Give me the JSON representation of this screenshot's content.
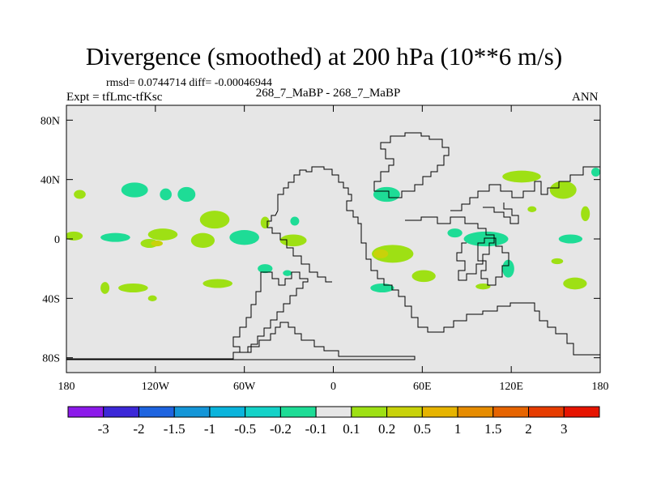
{
  "header": {
    "title": "Divergence (smoothed) at 200 hPa (10**6 m/s)",
    "stats": "rmsd= 0.0744714 diff= -0.00046944",
    "experiment": "Expt = tfLmc-tfKsc",
    "case": "268_7_MaBP - 268_7_MaBP",
    "season": "ANN"
  },
  "chart_data": {
    "type": "heatmap",
    "title": "Divergence (smoothed) at 200 hPa (10**6 m/s)",
    "xlabel": "",
    "ylabel": "",
    "xlim": [
      -180,
      180
    ],
    "ylim": [
      -90,
      90
    ],
    "x_ticks": [
      {
        "value": -180,
        "label": "180"
      },
      {
        "value": -120,
        "label": "120W"
      },
      {
        "value": -60,
        "label": "60W"
      },
      {
        "value": 0,
        "label": "0"
      },
      {
        "value": 60,
        "label": "60E"
      },
      {
        "value": 120,
        "label": "120E"
      },
      {
        "value": 180,
        "label": "180"
      }
    ],
    "y_ticks": [
      {
        "value": 80,
        "label": "80N"
      },
      {
        "value": 40,
        "label": "40N"
      },
      {
        "value": 0,
        "label": "0"
      },
      {
        "value": -40,
        "label": "40S"
      },
      {
        "value": -80,
        "label": "80S"
      }
    ],
    "background_color": "#e6e6e6",
    "colorbar": {
      "colors": [
        "#8c1aea",
        "#3c28d8",
        "#1e64e0",
        "#1496d8",
        "#0ab4dc",
        "#14d2c8",
        "#1edc96",
        "#e6e6e6",
        "#9ee014",
        "#c8d20a",
        "#e6b400",
        "#e68c00",
        "#e66400",
        "#e63c00",
        "#e61400"
      ],
      "labels": [
        "-3",
        "-2",
        "-1.5",
        "-1",
        "-0.5",
        "-0.2",
        "-0.1",
        "0.1",
        "0.2",
        "0.5",
        "1",
        "1.5",
        "2",
        "3"
      ]
    },
    "features": [
      {
        "category": "0.1 to 0.2",
        "color": "#9ee014",
        "lon": -171,
        "lat": 30,
        "rlon": 4,
        "rlat": 3
      },
      {
        "category": "0.1 to 0.2",
        "color": "#9ee014",
        "lon": -175,
        "lat": 2,
        "rlon": 6,
        "rlat": 3
      },
      {
        "category": "-0.2 to -0.1",
        "color": "#1edc96",
        "lon": -147,
        "lat": 1,
        "rlon": 10,
        "rlat": 3
      },
      {
        "category": "-0.2 to -0.1",
        "color": "#1edc96",
        "lon": -134,
        "lat": 33,
        "rlon": 9,
        "rlat": 5
      },
      {
        "category": "0.1 to 0.2",
        "color": "#9ee014",
        "lon": -115,
        "lat": 3,
        "rlon": 10,
        "rlat": 4
      },
      {
        "category": "0.1 to 0.2",
        "color": "#9ee014",
        "lon": -124,
        "lat": -3,
        "rlon": 6,
        "rlat": 3
      },
      {
        "category": "0.2 to 0.5",
        "color": "#c8d20a",
        "lon": -119,
        "lat": -3,
        "rlon": 4,
        "rlat": 2
      },
      {
        "category": "0.1 to 0.2",
        "color": "#9ee014",
        "lon": -154,
        "lat": -33,
        "rlon": 3,
        "rlat": 4
      },
      {
        "category": "0.1 to 0.2",
        "color": "#9ee014",
        "lon": -135,
        "lat": -33,
        "rlon": 10,
        "rlat": 3
      },
      {
        "category": "0.1 to 0.2",
        "color": "#9ee014",
        "lon": -122,
        "lat": -40,
        "rlon": 3,
        "rlat": 2
      },
      {
        "category": "-0.2 to -0.1",
        "color": "#1edc96",
        "lon": -99,
        "lat": 30,
        "rlon": 6,
        "rlat": 5
      },
      {
        "category": "-0.2 to -0.1",
        "color": "#1edc96",
        "lon": -113,
        "lat": 30,
        "rlon": 4,
        "rlat": 4
      },
      {
        "category": "0.1 to 0.2",
        "color": "#9ee014",
        "lon": -80,
        "lat": 13,
        "rlon": 10,
        "rlat": 6
      },
      {
        "category": "0.1 to 0.2",
        "color": "#9ee014",
        "lon": -88,
        "lat": -1,
        "rlon": 8,
        "rlat": 5
      },
      {
        "category": "-0.2 to -0.1",
        "color": "#1edc96",
        "lon": -60,
        "lat": 1,
        "rlon": 10,
        "rlat": 5
      },
      {
        "category": "0.1 to 0.2",
        "color": "#9ee014",
        "lon": -46,
        "lat": 11,
        "rlon": 3,
        "rlat": 4
      },
      {
        "category": "-0.2 to -0.1",
        "color": "#1edc96",
        "lon": -26,
        "lat": 12,
        "rlon": 3,
        "rlat": 3
      },
      {
        "category": "0.1 to 0.2",
        "color": "#9ee014",
        "lon": -27,
        "lat": -1,
        "rlon": 9,
        "rlat": 4
      },
      {
        "category": "-0.2 to -0.1",
        "color": "#1edc96",
        "lon": -46,
        "lat": -20,
        "rlon": 5,
        "rlat": 3
      },
      {
        "category": "0.1 to 0.2",
        "color": "#9ee014",
        "lon": -78,
        "lat": -30,
        "rlon": 10,
        "rlat": 3
      },
      {
        "category": "-0.2 to -0.1",
        "color": "#1edc96",
        "lon": -31,
        "lat": -23,
        "rlon": 3,
        "rlat": 2
      },
      {
        "category": "-0.2 to -0.1",
        "color": "#1edc96",
        "lon": 36,
        "lat": 30,
        "rlon": 9,
        "rlat": 5
      },
      {
        "category": "0.1 to 0.2",
        "color": "#9ee014",
        "lon": 40,
        "lat": -10,
        "rlon": 14,
        "rlat": 6
      },
      {
        "category": "0.2 to 0.5",
        "color": "#c8d20a",
        "lon": 32,
        "lat": -10,
        "rlon": 5,
        "rlat": 3
      },
      {
        "category": "-0.2 to -0.1",
        "color": "#1edc96",
        "lon": 33,
        "lat": -33,
        "rlon": 8,
        "rlat": 3
      },
      {
        "category": "0.1 to 0.2",
        "color": "#9ee014",
        "lon": 61,
        "lat": -25,
        "rlon": 8,
        "rlat": 4
      },
      {
        "category": "-0.2 to -0.1",
        "color": "#1edc96",
        "lon": 82,
        "lat": 4,
        "rlon": 5,
        "rlat": 3
      },
      {
        "category": "-0.2 to -0.1",
        "color": "#1edc96",
        "lon": 103,
        "lat": 0,
        "rlon": 15,
        "rlat": 5
      },
      {
        "category": "-0.2 to -0.1",
        "color": "#1edc96",
        "lon": 118,
        "lat": -20,
        "rlon": 4,
        "rlat": 6
      },
      {
        "category": "0.1 to 0.2",
        "color": "#9ee014",
        "lon": 101,
        "lat": -32,
        "rlon": 5,
        "rlat": 2
      },
      {
        "category": "0.1 to 0.2",
        "color": "#9ee014",
        "lon": 127,
        "lat": 42,
        "rlon": 13,
        "rlat": 4
      },
      {
        "category": "0.1 to 0.2",
        "color": "#9ee014",
        "lon": 134,
        "lat": 20,
        "rlon": 3,
        "rlat": 2
      },
      {
        "category": "0.1 to 0.2",
        "color": "#9ee014",
        "lon": 155,
        "lat": 33,
        "rlon": 9,
        "rlat": 6
      },
      {
        "category": "0.1 to 0.2",
        "color": "#9ee014",
        "lon": 170,
        "lat": 17,
        "rlon": 3,
        "rlat": 5
      },
      {
        "category": "-0.2 to -0.1",
        "color": "#1edc96",
        "lon": 177,
        "lat": 45,
        "rlon": 3,
        "rlat": 3
      },
      {
        "category": "-0.2 to -0.1",
        "color": "#1edc96",
        "lon": 160,
        "lat": 0,
        "rlon": 8,
        "rlat": 3
      },
      {
        "category": "0.1 to 0.2",
        "color": "#9ee014",
        "lon": 151,
        "lat": -15,
        "rlon": 4,
        "rlat": 2
      },
      {
        "category": "0.1 to 0.2",
        "color": "#9ee014",
        "lon": 163,
        "lat": -30,
        "rlon": 8,
        "rlat": 4
      }
    ]
  }
}
